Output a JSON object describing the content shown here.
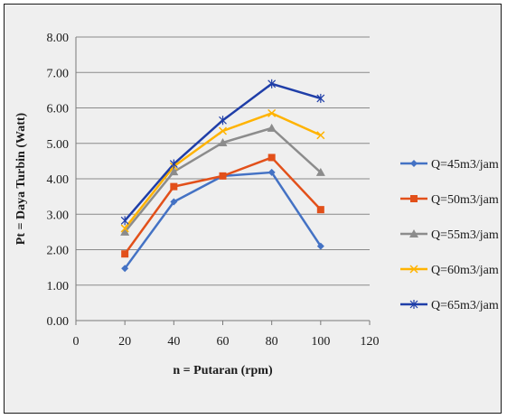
{
  "chart_data": {
    "type": "line",
    "xlabel": "n = Putaran (rpm)",
    "ylabel": "Pt = Daya Turbin  (Watt)",
    "xlim": [
      0,
      120
    ],
    "ylim": [
      0,
      8
    ],
    "x_ticks": [
      "0",
      "20",
      "40",
      "60",
      "80",
      "100",
      "120"
    ],
    "y_ticks": [
      "0.00",
      "1.00",
      "2.00",
      "3.00",
      "4.00",
      "5.00",
      "6.00",
      "7.00",
      "8.00"
    ],
    "grid": "horizontal",
    "legend_position": "right",
    "x": [
      20,
      40,
      60,
      80,
      100
    ],
    "series": [
      {
        "name": "Q=45m3/jam",
        "color": "#4472c4",
        "marker": "diamond",
        "values": [
          1.47,
          3.35,
          4.08,
          4.18,
          2.1
        ]
      },
      {
        "name": "Q=50m3/jam",
        "color": "#e2501a",
        "marker": "square",
        "values": [
          1.88,
          3.78,
          4.08,
          4.6,
          3.13
        ]
      },
      {
        "name": "Q=55m3/jam",
        "color": "#8c8c8c",
        "marker": "triangle",
        "values": [
          2.5,
          4.2,
          5.02,
          5.43,
          4.18
        ]
      },
      {
        "name": "Q=60m3/jam",
        "color": "#ffb300",
        "marker": "x",
        "values": [
          2.6,
          4.35,
          5.35,
          5.85,
          5.23
        ]
      },
      {
        "name": "Q=65m3/jam",
        "color": "#1f3ea8",
        "marker": "star",
        "values": [
          2.82,
          4.42,
          5.65,
          6.68,
          6.27
        ]
      }
    ]
  }
}
